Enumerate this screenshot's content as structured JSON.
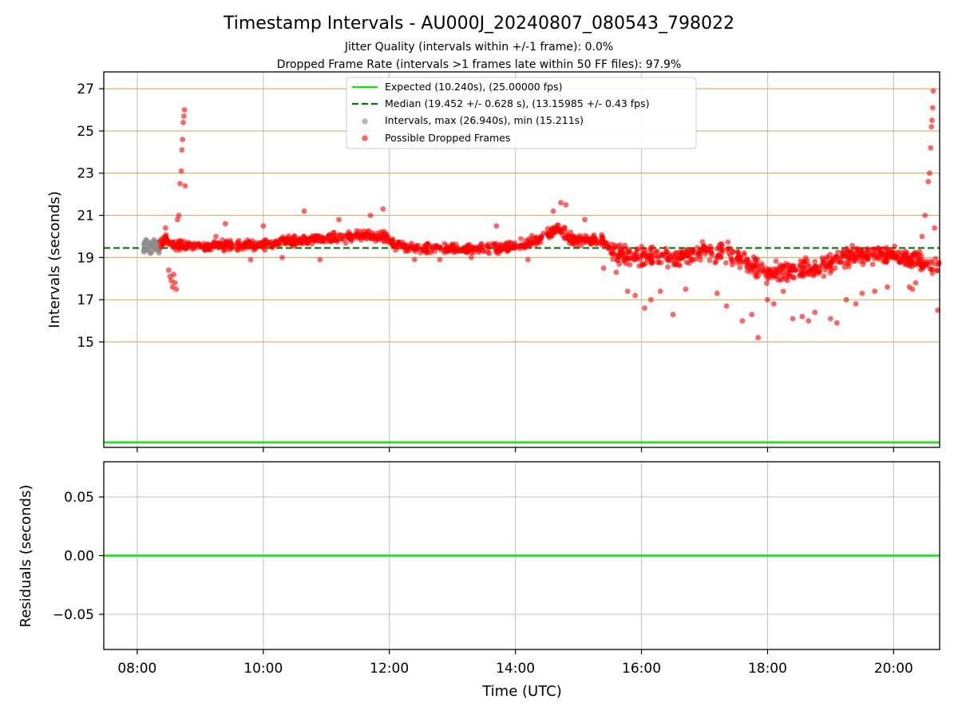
{
  "title": "Timestamp Intervals - AU000J_20240807_080543_798022",
  "subtitle_1": "Jitter Quality (intervals within +/-1 frame): 0.0%",
  "subtitle_2": "Dropped Frame Rate (intervals >1 frames late within 50 FF files): 97.9%",
  "colors": {
    "expected": "#00ee00",
    "median": "#007a00",
    "intervals": "#8c8c8c",
    "dropped": "#ff0000",
    "hgrid": "#d2b468",
    "vgrid": "#c8c8c8"
  },
  "chart_data": [
    {
      "type": "scatter",
      "title": "Timestamp Intervals - AU000J_20240807_080543_798022",
      "xlabel": "",
      "ylabel": "Intervals (seconds)",
      "xlim": [
        7.47,
        20.73
      ],
      "ylim": [
        10.0,
        27.8
      ],
      "yticks": [
        15,
        17,
        19,
        21,
        23,
        25,
        27
      ],
      "yticklabels": [
        "15",
        "17",
        "19",
        "21",
        "23",
        "25",
        "27"
      ],
      "xticks": [
        8,
        10,
        12,
        14,
        16,
        18,
        20
      ],
      "grid": true,
      "legend_placement": "upper center",
      "legend": [
        "Expected (10.240s), (25.00000 fps)",
        "Median (19.452 +/- 0.628 s), (13.15985 +/- 0.43 fps)",
        "Intervals, max (26.940s), min (15.211s)",
        "Possible Dropped Frames"
      ],
      "expected_line": 10.24,
      "median_line": 19.452,
      "series": [
        {
          "name": "Intervals, max (26.940s), min (15.211s)",
          "points": [
            [
              8.1,
              19.3
            ],
            [
              8.12,
              19.6
            ],
            [
              8.14,
              19.8
            ],
            [
              8.16,
              19.4
            ],
            [
              8.18,
              19.7
            ],
            [
              8.2,
              19.5
            ],
            [
              8.22,
              19.2
            ],
            [
              8.24,
              19.6
            ],
            [
              8.26,
              19.8
            ],
            [
              8.28,
              19.4
            ],
            [
              8.3,
              19.6
            ],
            [
              8.32,
              19.7
            ],
            [
              8.34,
              19.3
            ]
          ]
        },
        {
          "name": "Possible Dropped Frames",
          "trend": [
            [
              8.35,
              19.6
            ],
            [
              8.45,
              19.9
            ],
            [
              8.6,
              19.6
            ],
            [
              9.0,
              19.5
            ],
            [
              9.5,
              19.6
            ],
            [
              10.0,
              19.6
            ],
            [
              10.5,
              19.8
            ],
            [
              11.0,
              19.9
            ],
            [
              11.5,
              20.0
            ],
            [
              11.95,
              20.0
            ],
            [
              12.1,
              19.6
            ],
            [
              12.5,
              19.4
            ],
            [
              13.0,
              19.4
            ],
            [
              13.5,
              19.4
            ],
            [
              14.0,
              19.5
            ],
            [
              14.4,
              19.9
            ],
            [
              14.7,
              20.4
            ],
            [
              14.85,
              19.9
            ],
            [
              15.4,
              19.8
            ],
            [
              15.55,
              19.3
            ],
            [
              15.8,
              19.0
            ],
            [
              16.2,
              19.0
            ],
            [
              16.5,
              19.0
            ],
            [
              17.0,
              19.3
            ],
            [
              17.4,
              19.2
            ],
            [
              17.7,
              18.7
            ],
            [
              18.0,
              18.3
            ],
            [
              18.5,
              18.4
            ],
            [
              18.8,
              18.6
            ],
            [
              19.2,
              19.0
            ],
            [
              19.6,
              19.2
            ],
            [
              20.0,
              19.1
            ],
            [
              20.25,
              18.9
            ],
            [
              20.45,
              18.7
            ],
            [
              20.73,
              18.6
            ]
          ],
          "spread": 0.35,
          "outliers": [
            [
              8.5,
              18.4
            ],
            [
              8.52,
              18.1
            ],
            [
              8.54,
              17.9
            ],
            [
              8.56,
              17.6
            ],
            [
              8.58,
              18.2
            ],
            [
              8.6,
              17.8
            ],
            [
              8.62,
              17.5
            ],
            [
              8.64,
              20.8
            ],
            [
              8.66,
              21.0
            ],
            [
              8.68,
              22.5
            ],
            [
              8.7,
              23.1
            ],
            [
              8.71,
              24.1
            ],
            [
              8.72,
              24.6
            ],
            [
              8.73,
              25.4
            ],
            [
              8.74,
              25.7
            ],
            [
              8.75,
              26.0
            ],
            [
              8.76,
              22.4
            ],
            [
              8.45,
              20.4
            ],
            [
              9.25,
              20.0
            ],
            [
              9.4,
              20.6
            ],
            [
              9.8,
              18.9
            ],
            [
              10.0,
              20.5
            ],
            [
              10.3,
              19.0
            ],
            [
              10.65,
              21.2
            ],
            [
              10.9,
              18.9
            ],
            [
              11.2,
              20.8
            ],
            [
              11.7,
              21.0
            ],
            [
              11.9,
              21.3
            ],
            [
              12.4,
              18.9
            ],
            [
              12.8,
              18.9
            ],
            [
              13.3,
              19.0
            ],
            [
              13.7,
              20.5
            ],
            [
              14.2,
              18.9
            ],
            [
              14.6,
              21.2
            ],
            [
              14.72,
              21.6
            ],
            [
              14.8,
              21.5
            ],
            [
              15.1,
              20.8
            ],
            [
              15.4,
              18.5
            ],
            [
              15.6,
              18.3
            ],
            [
              15.78,
              17.4
            ],
            [
              15.9,
              17.2
            ],
            [
              16.05,
              16.6
            ],
            [
              16.15,
              17.0
            ],
            [
              16.3,
              17.4
            ],
            [
              16.5,
              16.3
            ],
            [
              16.7,
              17.5
            ],
            [
              17.2,
              17.3
            ],
            [
              17.35,
              16.7
            ],
            [
              17.6,
              16.0
            ],
            [
              17.75,
              16.3
            ],
            [
              17.85,
              15.2
            ],
            [
              18.0,
              17.0
            ],
            [
              18.1,
              16.8
            ],
            [
              18.25,
              17.4
            ],
            [
              18.4,
              16.1
            ],
            [
              18.55,
              16.2
            ],
            [
              18.65,
              16.0
            ],
            [
              18.75,
              16.4
            ],
            [
              19.0,
              16.1
            ],
            [
              19.1,
              15.9
            ],
            [
              19.25,
              17.0
            ],
            [
              19.4,
              16.8
            ],
            [
              19.5,
              17.3
            ],
            [
              19.7,
              17.4
            ],
            [
              19.9,
              17.6
            ],
            [
              20.25,
              17.6
            ],
            [
              20.3,
              17.5
            ],
            [
              20.35,
              17.8
            ],
            [
              20.45,
              20.0
            ],
            [
              20.5,
              21.0
            ],
            [
              20.55,
              22.6
            ],
            [
              20.57,
              23.0
            ],
            [
              20.59,
              24.2
            ],
            [
              20.6,
              25.2
            ],
            [
              20.61,
              25.5
            ],
            [
              20.62,
              26.1
            ],
            [
              20.63,
              26.9
            ],
            [
              20.65,
              20.4
            ],
            [
              20.7,
              16.5
            ],
            [
              20.72,
              18.7
            ]
          ]
        }
      ]
    },
    {
      "type": "line",
      "xlabel": "Time (UTC)",
      "ylabel": "Residuals (seconds)",
      "xlim": [
        7.47,
        20.73
      ],
      "ylim": [
        -0.08,
        0.08
      ],
      "yticks": [
        0.05,
        0.0,
        -0.05
      ],
      "yticklabels": [
        "0.05",
        "0.00",
        "−0.05"
      ],
      "xticks": [
        8,
        10,
        12,
        14,
        16,
        18,
        20
      ],
      "xticklabels": [
        "08:00",
        "10:00",
        "12:00",
        "14:00",
        "16:00",
        "18:00",
        "20:00"
      ],
      "grid": true,
      "series": [
        {
          "name": "",
          "x": [
            7.47,
            20.73
          ],
          "y": [
            0.0,
            0.0
          ]
        }
      ]
    }
  ]
}
